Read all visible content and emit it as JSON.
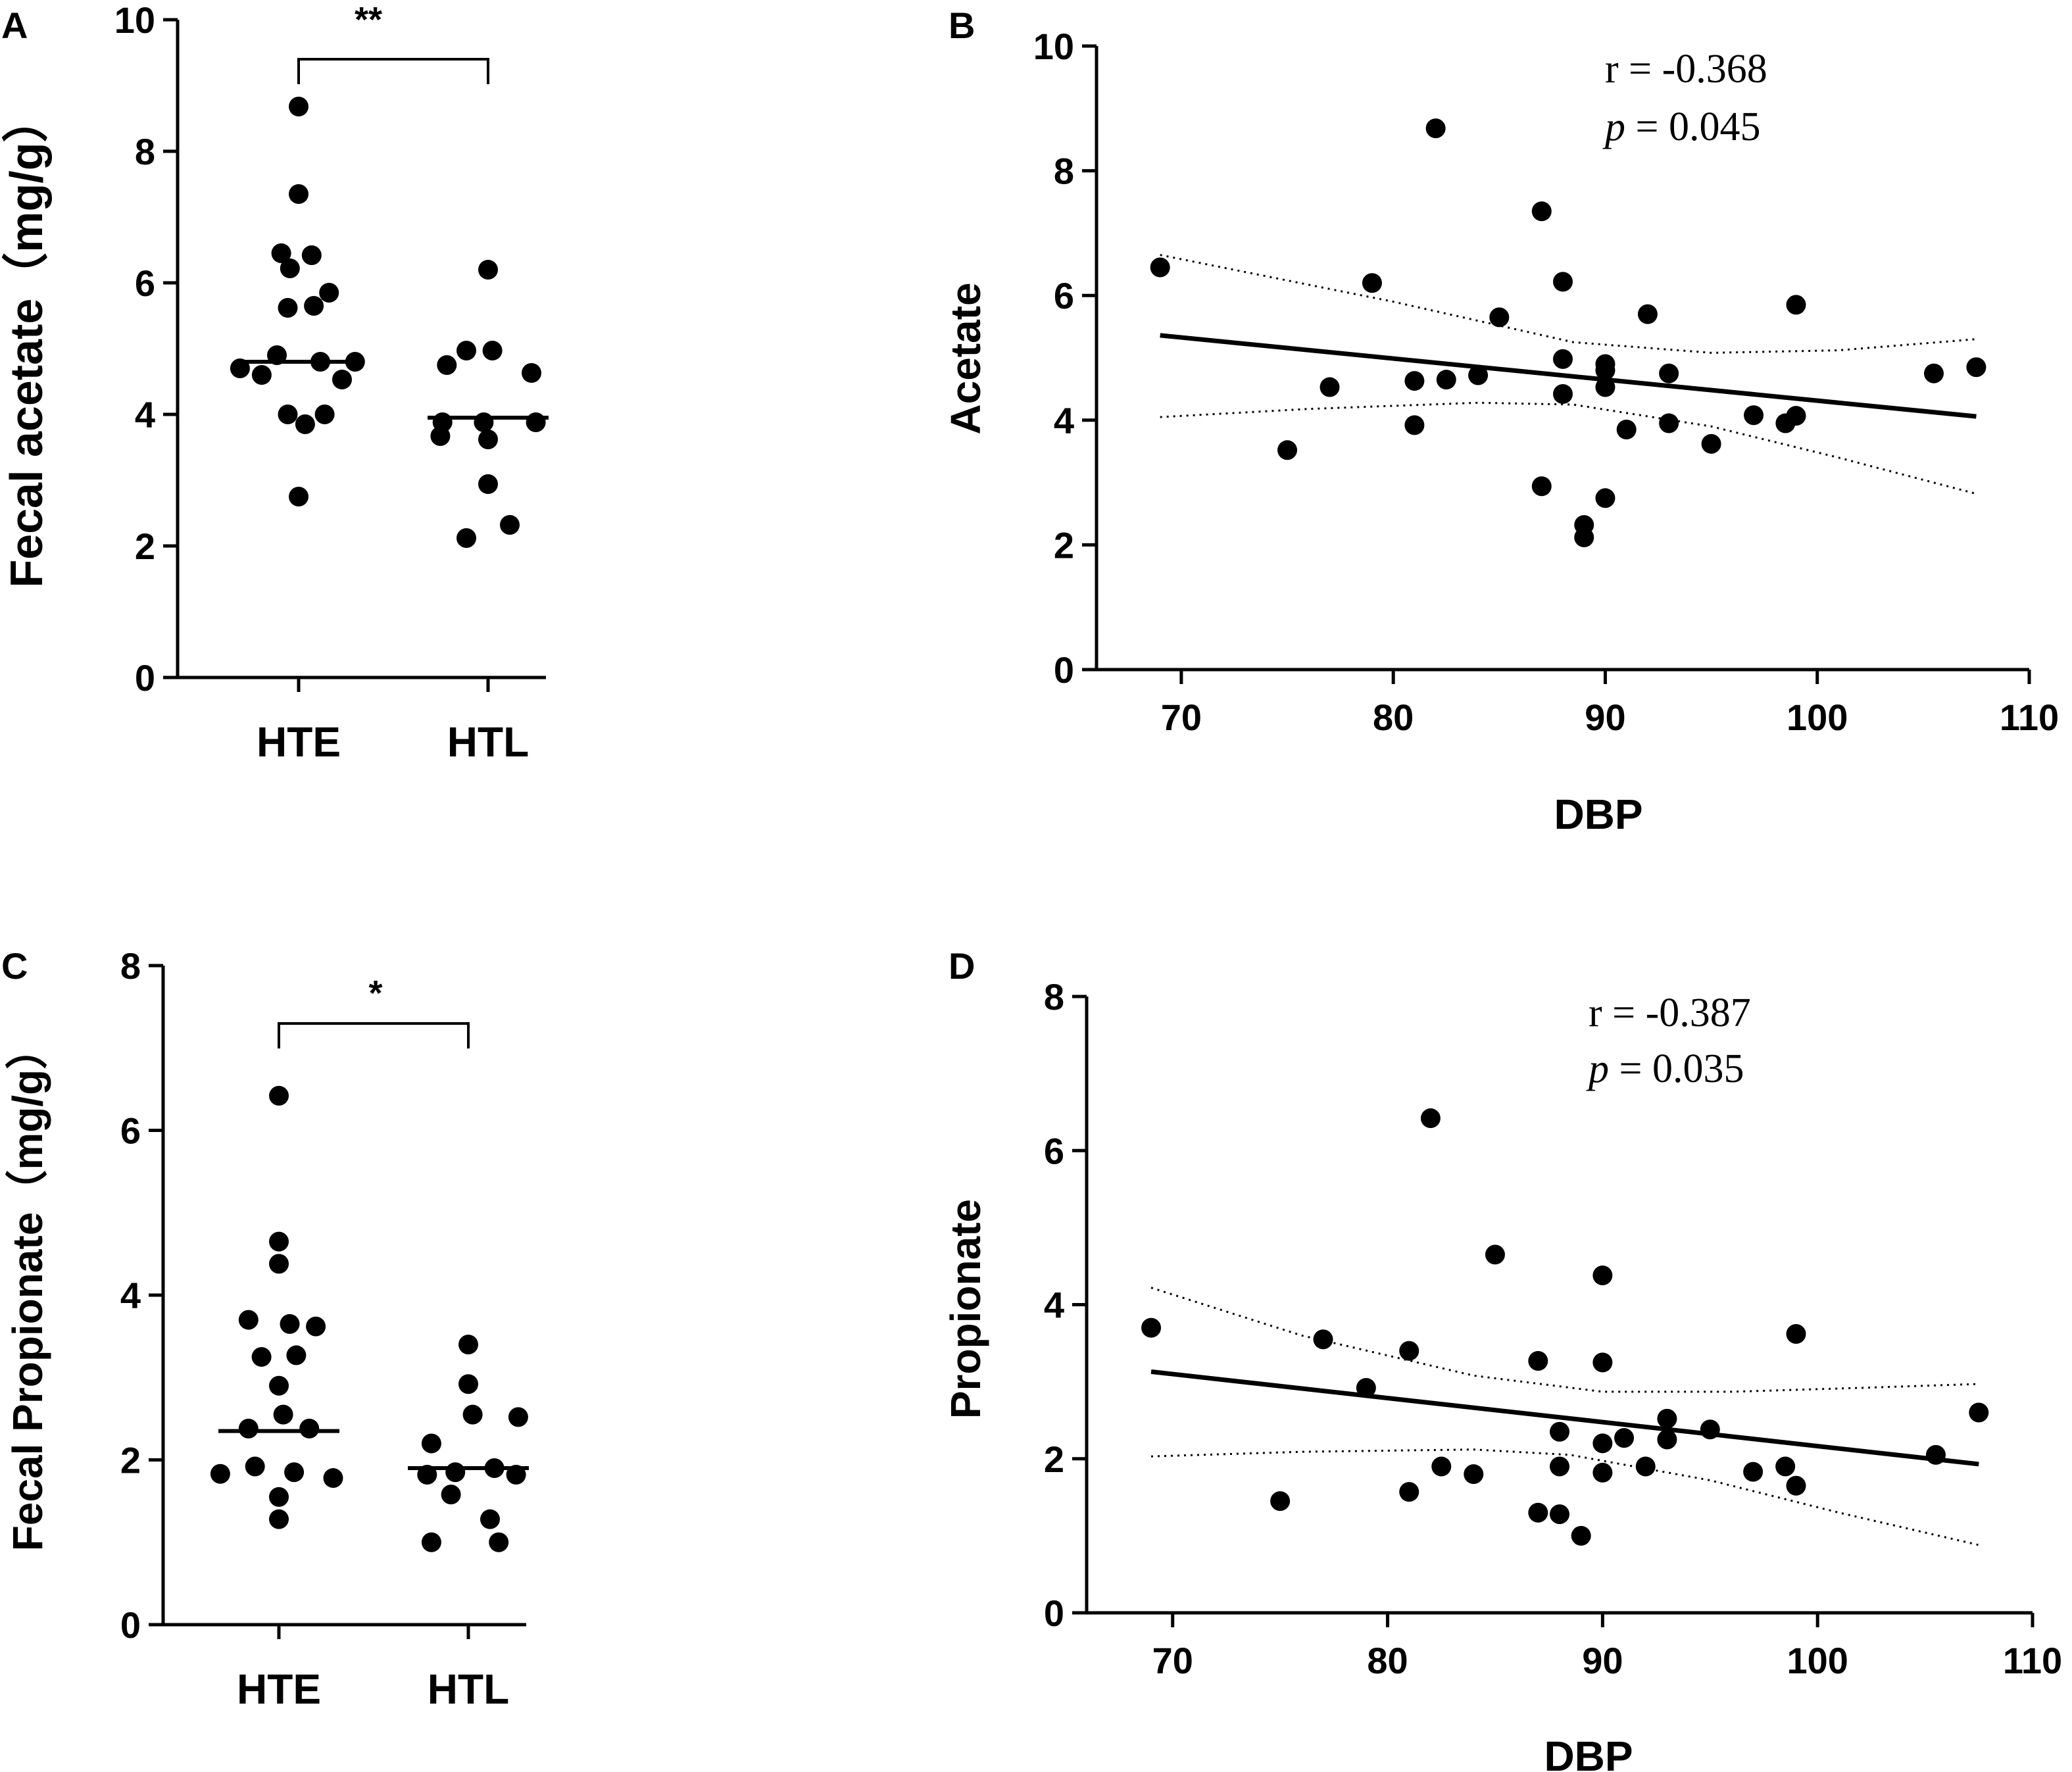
{
  "colors": {
    "ink": "#000000",
    "background": "#ffffff"
  },
  "chart_data": [
    {
      "panel": "A",
      "type": "scatter",
      "subtype": "dot-plot-with-median",
      "title": "",
      "xlabel": "",
      "ylabel": "Fecal acetate（mg/g）",
      "categories": [
        "HTE",
        "HTL"
      ],
      "ylim": [
        0,
        10
      ],
      "yticks": [
        0,
        2,
        4,
        6,
        8,
        10
      ],
      "grid": false,
      "series": [
        {
          "name": "HTE",
          "points": [
            [
              0,
              8.68
            ],
            [
              0,
              7.35
            ],
            [
              -0.08,
              6.45
            ],
            [
              0.06,
              6.42
            ],
            [
              -0.04,
              6.22
            ],
            [
              0.14,
              5.85
            ],
            [
              0.07,
              5.65
            ],
            [
              -0.05,
              5.62
            ],
            [
              -0.1,
              4.9
            ],
            [
              0.1,
              4.8
            ],
            [
              0.26,
              4.8
            ],
            [
              -0.27,
              4.7
            ],
            [
              -0.17,
              4.6
            ],
            [
              0.2,
              4.53
            ],
            [
              0.12,
              4.0
            ],
            [
              -0.05,
              4.0
            ],
            [
              0.03,
              3.85
            ],
            [
              0,
              2.75
            ]
          ],
          "median": 4.8
        },
        {
          "name": "HTL",
          "points": [
            [
              0,
              6.2
            ],
            [
              -0.1,
              4.97
            ],
            [
              0.02,
              4.97
            ],
            [
              -0.19,
              4.75
            ],
            [
              0.2,
              4.63
            ],
            [
              -0.21,
              3.88
            ],
            [
              -0.02,
              3.88
            ],
            [
              0.22,
              3.88
            ],
            [
              -0.22,
              3.67
            ],
            [
              0,
              3.62
            ],
            [
              0,
              2.94
            ],
            [
              -0.1,
              2.12
            ],
            [
              0.1,
              2.32
            ]
          ],
          "median": 3.95
        }
      ],
      "significance": {
        "label": "**",
        "between": [
          "HTE",
          "HTL"
        ]
      }
    },
    {
      "panel": "B",
      "type": "scatter",
      "title": "",
      "xlabel": "DBP",
      "ylabel": "Acetate",
      "xlim": [
        66,
        110
      ],
      "ylim": [
        0,
        10
      ],
      "xticks": [
        70,
        80,
        90,
        100,
        110
      ],
      "yticks": [
        0,
        2,
        4,
        6,
        8,
        10
      ],
      "grid": false,
      "points": [
        [
          69,
          6.45
        ],
        [
          75,
          3.52
        ],
        [
          77,
          4.53
        ],
        [
          79,
          6.2
        ],
        [
          81,
          4.63
        ],
        [
          81,
          3.92
        ],
        [
          82,
          8.68
        ],
        [
          82.5,
          4.65
        ],
        [
          84,
          4.72
        ],
        [
          85,
          5.65
        ],
        [
          87,
          7.35
        ],
        [
          87,
          2.94
        ],
        [
          88,
          6.22
        ],
        [
          88,
          4.98
        ],
        [
          88,
          4.42
        ],
        [
          89,
          2.12
        ],
        [
          89,
          2.32
        ],
        [
          90,
          4.9
        ],
        [
          90,
          4.8
        ],
        [
          90,
          4.53
        ],
        [
          90,
          2.75
        ],
        [
          91,
          3.85
        ],
        [
          92,
          5.7
        ],
        [
          93,
          4.75
        ],
        [
          93,
          3.95
        ],
        [
          95,
          3.62
        ],
        [
          97,
          4.08
        ],
        [
          98.5,
          3.95
        ],
        [
          99,
          5.85
        ],
        [
          99,
          4.07
        ],
        [
          105.5,
          4.75
        ],
        [
          107.5,
          4.85
        ]
      ],
      "regression": {
        "x": [
          69,
          107.5
        ],
        "y": [
          5.36,
          4.06
        ]
      },
      "ci_upper": [
        [
          69,
          6.65
        ],
        [
          80,
          5.9
        ],
        [
          88.5,
          5.25
        ],
        [
          95,
          5.08
        ],
        [
          101,
          5.12
        ],
        [
          107.5,
          5.3
        ]
      ],
      "ci_lower": [
        [
          69,
          4.05
        ],
        [
          76,
          4.18
        ],
        [
          84,
          4.28
        ],
        [
          88.5,
          4.25
        ],
        [
          95,
          3.9
        ],
        [
          101,
          3.4
        ],
        [
          107.5,
          2.82
        ]
      ],
      "annotation": {
        "r_text": "r = -0.368",
        "p_symbol": "p",
        "p_rest": " = 0.045"
      }
    },
    {
      "panel": "C",
      "type": "scatter",
      "subtype": "dot-plot-with-median",
      "title": "",
      "xlabel": "",
      "ylabel": "Fecal Propionate（mg/g）",
      "categories": [
        "HTE",
        "HTL"
      ],
      "ylim": [
        0,
        8
      ],
      "yticks": [
        0,
        2,
        4,
        6,
        8
      ],
      "grid": false,
      "series": [
        {
          "name": "HTE",
          "points": [
            [
              0,
              6.42
            ],
            [
              0,
              4.65
            ],
            [
              0,
              4.38
            ],
            [
              -0.14,
              3.7
            ],
            [
              0.05,
              3.65
            ],
            [
              0.17,
              3.62
            ],
            [
              -0.08,
              3.25
            ],
            [
              0.08,
              3.27
            ],
            [
              0,
              2.9
            ],
            [
              0.02,
              2.55
            ],
            [
              -0.14,
              2.38
            ],
            [
              0.14,
              2.38
            ],
            [
              -0.27,
              1.83
            ],
            [
              0.25,
              1.78
            ],
            [
              -0.11,
              1.92
            ],
            [
              0.07,
              1.85
            ],
            [
              0,
              1.55
            ],
            [
              0,
              1.28
            ]
          ],
          "median": 2.35
        },
        {
          "name": "HTL",
          "points": [
            [
              0,
              3.4
            ],
            [
              0,
              2.92
            ],
            [
              -0.17,
              2.2
            ],
            [
              0.23,
              2.52
            ],
            [
              0.02,
              2.55
            ],
            [
              -0.19,
              1.82
            ],
            [
              -0.06,
              1.85
            ],
            [
              0.12,
              1.9
            ],
            [
              0.22,
              1.82
            ],
            [
              -0.17,
              1.0
            ],
            [
              -0.08,
              1.58
            ],
            [
              0.1,
              1.28
            ],
            [
              0.14,
              1.0
            ]
          ],
          "median": 1.9
        }
      ],
      "significance": {
        "label": "*",
        "between": [
          "HTE",
          "HTL"
        ]
      }
    },
    {
      "panel": "D",
      "type": "scatter",
      "title": "",
      "xlabel": "DBP",
      "ylabel": "Propionate",
      "xlim": [
        66,
        110
      ],
      "ylim": [
        0,
        8
      ],
      "xticks": [
        70,
        80,
        90,
        100,
        110
      ],
      "yticks": [
        0,
        2,
        4,
        6,
        8
      ],
      "grid": false,
      "points": [
        [
          69,
          3.7
        ],
        [
          75,
          1.45
        ],
        [
          77,
          3.55
        ],
        [
          79,
          2.92
        ],
        [
          81,
          3.4
        ],
        [
          81,
          1.57
        ],
        [
          82,
          6.42
        ],
        [
          82.5,
          1.9
        ],
        [
          84,
          1.8
        ],
        [
          85,
          4.65
        ],
        [
          87,
          3.27
        ],
        [
          87,
          1.3
        ],
        [
          88,
          2.35
        ],
        [
          88,
          1.9
        ],
        [
          88,
          1.28
        ],
        [
          89,
          1.0
        ],
        [
          90,
          4.38
        ],
        [
          90,
          3.25
        ],
        [
          90,
          2.2
        ],
        [
          90,
          1.82
        ],
        [
          91,
          2.27
        ],
        [
          92,
          1.9
        ],
        [
          93,
          2.52
        ],
        [
          93,
          2.25
        ],
        [
          95,
          2.38
        ],
        [
          97,
          1.83
        ],
        [
          98.5,
          1.9
        ],
        [
          99,
          3.62
        ],
        [
          99,
          1.65
        ],
        [
          105.5,
          2.05
        ],
        [
          107.5,
          2.6
        ]
      ],
      "regression": {
        "x": [
          69,
          107.5
        ],
        "y": [
          3.13,
          1.93
        ]
      },
      "ci_upper": [
        [
          69,
          4.22
        ],
        [
          76,
          3.6
        ],
        [
          84,
          3.08
        ],
        [
          90,
          2.87
        ],
        [
          96,
          2.87
        ],
        [
          102,
          2.92
        ],
        [
          107.5,
          2.97
        ]
      ],
      "ci_lower": [
        [
          69,
          2.03
        ],
        [
          76,
          2.09
        ],
        [
          84,
          2.12
        ],
        [
          88.5,
          2.05
        ],
        [
          95,
          1.72
        ],
        [
          101,
          1.3
        ],
        [
          107.5,
          0.88
        ]
      ],
      "annotation": {
        "r_text": "r = -0.387",
        "p_symbol": "p",
        "p_rest": " = 0.035"
      }
    }
  ]
}
